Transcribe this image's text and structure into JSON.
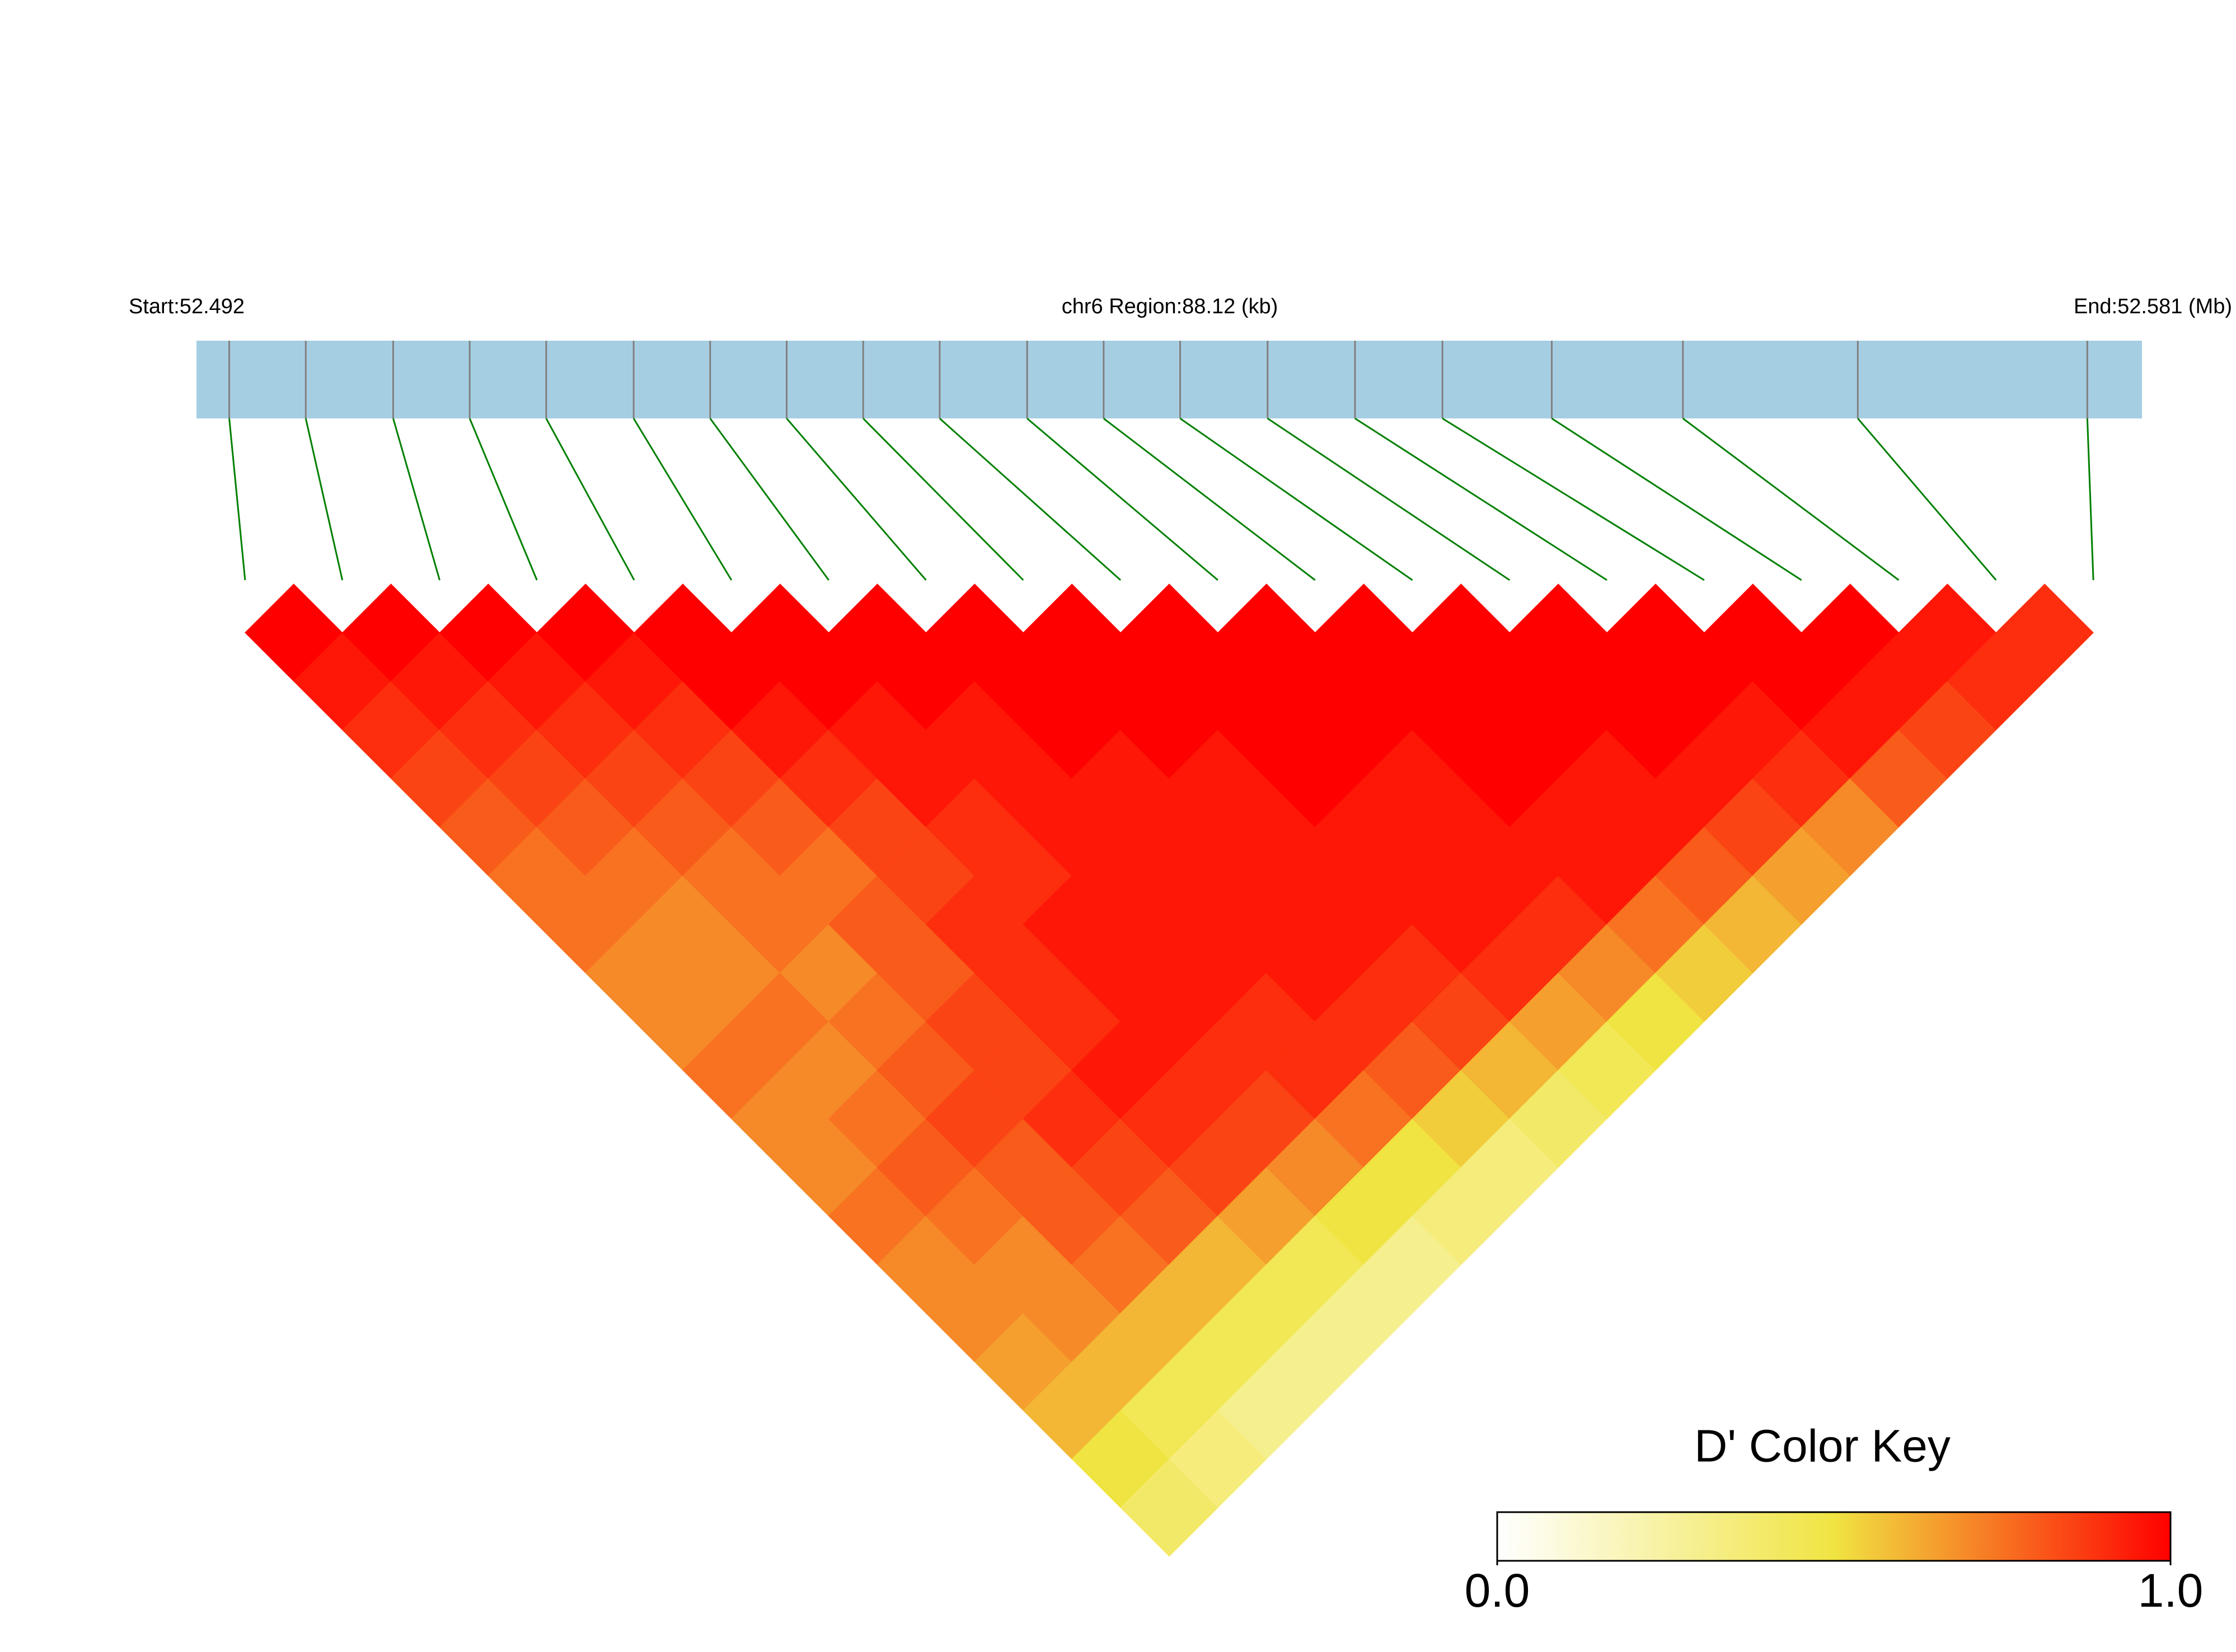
{
  "chart_data": {
    "type": "ld_heatmap",
    "start_label": "Start:52.492",
    "region_label": "chr6 Region:88.12 (kb)",
    "end_label": "End:52.581 (Mb)",
    "xlim": [
      52.492,
      52.581
    ],
    "snp_positions": [
      52.4935,
      52.497,
      52.501,
      52.5045,
      52.508,
      52.512,
      52.5155,
      52.519,
      52.5225,
      52.526,
      52.53,
      52.5335,
      52.537,
      52.541,
      52.545,
      52.549,
      52.554,
      52.56,
      52.568,
      52.5785
    ],
    "track_color": "#a6cee3",
    "snp_line_color": "#808080",
    "connector_color": "#008000",
    "matrix": [
      [
        1,
        0.95,
        0.9,
        0.85,
        0.8,
        0.75,
        0.75,
        0.7,
        0.7,
        0.75,
        0.7,
        0.7,
        0.75,
        0.7,
        0.7,
        0.65,
        0.6,
        0.5,
        0.4
      ],
      [
        1,
        0.95,
        0.9,
        0.85,
        0.8,
        0.75,
        0.7,
        0.7,
        0.75,
        0.7,
        0.75,
        0.8,
        0.75,
        0.7,
        0.7,
        0.6,
        0.45,
        0.35
      ],
      [
        1,
        0.95,
        0.9,
        0.85,
        0.8,
        0.75,
        0.75,
        0.7,
        0.75,
        0.8,
        0.85,
        0.8,
        0.8,
        0.75,
        0.6,
        0.45,
        0.3
      ],
      [
        1,
        0.95,
        0.9,
        0.85,
        0.8,
        0.75,
        0.8,
        0.8,
        0.85,
        0.85,
        0.9,
        0.85,
        0.8,
        0.6,
        0.45,
        0.3
      ],
      [
        1,
        1,
        0.95,
        0.9,
        0.85,
        0.85,
        0.9,
        0.9,
        0.9,
        0.95,
        0.9,
        0.85,
        0.65,
        0.45,
        0.3
      ],
      [
        1,
        1,
        0.95,
        0.95,
        0.9,
        0.9,
        0.95,
        0.95,
        0.95,
        0.9,
        0.85,
        0.7,
        0.5,
        0.3
      ],
      [
        1,
        1,
        0.95,
        0.95,
        0.95,
        0.95,
        0.95,
        0.95,
        0.9,
        0.9,
        0.75,
        0.5,
        0.35
      ],
      [
        1,
        1,
        1,
        0.95,
        0.95,
        0.95,
        0.95,
        0.95,
        0.9,
        0.8,
        0.55,
        0.35
      ],
      [
        1,
        1,
        1,
        0.95,
        0.95,
        0.95,
        0.95,
        0.9,
        0.85,
        0.6,
        0.4
      ],
      [
        1,
        1,
        1,
        1,
        0.95,
        0.95,
        0.95,
        0.9,
        0.65,
        0.45
      ],
      [
        1,
        1,
        1,
        0.95,
        0.95,
        0.95,
        0.9,
        0.7,
        0.5
      ],
      [
        1,
        1,
        1,
        1,
        0.95,
        0.95,
        0.75,
        0.55
      ],
      [
        1,
        1,
        1,
        0.95,
        0.95,
        0.8,
        0.6
      ],
      [
        1,
        1,
        1,
        0.95,
        0.85,
        0.65
      ],
      [
        1,
        1,
        0.95,
        0.9,
        0.7
      ],
      [
        1,
        1,
        0.95,
        0.8
      ],
      [
        1,
        0.95,
        0.85
      ],
      [
        0.95,
        0.9
      ],
      [
        0.9
      ]
    ],
    "colorbar": {
      "title": "D' Color Key",
      "clim": [
        0,
        1
      ],
      "colors": [
        "#ffffff",
        "#f0e442",
        "#ff0000"
      ],
      "ticks": [
        {
          "value": 0,
          "label": "0.0"
        },
        {
          "value": 1,
          "label": "1.0"
        }
      ]
    }
  }
}
